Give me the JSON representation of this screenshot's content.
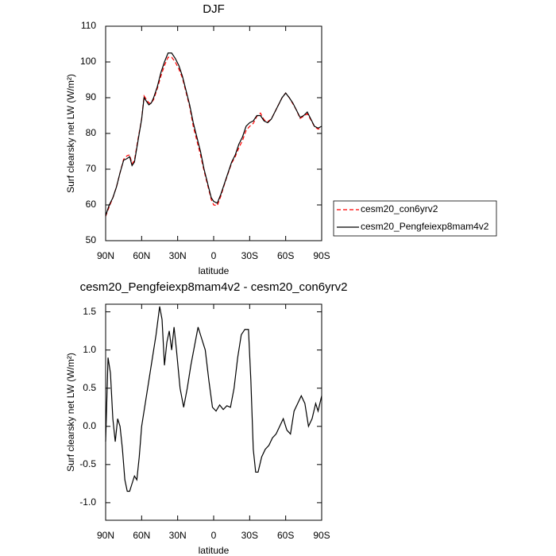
{
  "chart_data": [
    {
      "type": "line",
      "title": "DJF",
      "x_label": "latitude",
      "y_label": "Surf clearsky net LW (W/m²)",
      "xlim": [
        90,
        -90
      ],
      "xticks": [
        {
          "value": 90,
          "label": "90N"
        },
        {
          "value": 60,
          "label": "60N"
        },
        {
          "value": 30,
          "label": "30N"
        },
        0,
        {
          "value": -30,
          "label": "30S"
        },
        {
          "value": -60,
          "label": "60S"
        },
        {
          "value": -90,
          "label": "90S"
        }
      ],
      "ylim": [
        50,
        110
      ],
      "yticks": [
        50,
        60,
        70,
        80,
        90,
        100,
        110
      ],
      "legend": "right",
      "x": [
        90,
        87,
        84,
        81,
        78,
        75,
        72,
        70,
        68,
        66,
        63,
        60,
        58,
        56,
        54,
        52,
        50,
        47,
        44,
        41,
        38,
        35,
        32,
        29,
        26,
        23,
        20,
        17,
        14,
        11,
        8,
        5,
        2,
        0,
        -3,
        -6,
        -9,
        -12,
        -15,
        -18,
        -21,
        -24,
        -27,
        -30,
        -33,
        -36,
        -39,
        -42,
        -45,
        -48,
        -51,
        -54,
        -57,
        -60,
        -63,
        -66,
        -69,
        -72,
        -75,
        -78,
        -81,
        -84,
        -87,
        -90
      ],
      "series": [
        {
          "name": "cesm20_con6yrv2",
          "color": "#ff0000",
          "dash": true,
          "values": [
            56.8,
            59.5,
            62,
            65,
            69,
            72.8,
            73.8,
            74,
            71.5,
            72.5,
            78.5,
            84,
            90.5,
            89.5,
            88.5,
            88.5,
            89.5,
            92.5,
            96,
            99,
            101.3,
            101.3,
            100,
            98,
            95.5,
            91.5,
            87.5,
            82,
            78,
            74,
            69.5,
            65.5,
            61.5,
            60,
            59.8,
            62.5,
            65.8,
            68.8,
            71.7,
            73.5,
            76,
            78,
            80.8,
            82,
            82.8,
            84.8,
            85.7,
            83.8,
            83.3,
            84,
            86,
            88,
            90,
            91.3,
            90,
            88.3,
            86.5,
            84.2,
            84.8,
            85.5,
            83.8,
            81.9,
            81.2,
            81.6
          ]
        },
        {
          "name": "cesm20_Pengfeiexp8mam4v2",
          "color": "#000000",
          "dash": false,
          "values": [
            57,
            60,
            62,
            65,
            69,
            72.5,
            73,
            73.5,
            71,
            72,
            78,
            84,
            90,
            89,
            88,
            88.5,
            90,
            93,
            97,
            100,
            102.5,
            102.5,
            101,
            99,
            96,
            92,
            88,
            83,
            79,
            75,
            70,
            66,
            62,
            61,
            60.5,
            63,
            66,
            69,
            72,
            74,
            77,
            79,
            82,
            83,
            83.5,
            85,
            85,
            83.5,
            83,
            84,
            86,
            88,
            90,
            91.3,
            90,
            88.5,
            86.5,
            84.5,
            85,
            86,
            84,
            82,
            81.5,
            82
          ]
        }
      ]
    },
    {
      "type": "line",
      "title": "cesm20_Pengfeiexp8mam4v2 - cesm20_con6yrv2",
      "x_label": "latitude",
      "y_label": "Surf clearsky net LW (W/m²)",
      "xlim": [
        90,
        -90
      ],
      "xticks": [
        {
          "value": 90,
          "label": "90N"
        },
        {
          "value": 60,
          "label": "60N"
        },
        {
          "value": 30,
          "label": "30N"
        },
        0,
        {
          "value": -30,
          "label": "30S"
        },
        {
          "value": -60,
          "label": "60S"
        },
        {
          "value": -90,
          "label": "90S"
        }
      ],
      "ylim": [
        -1.23,
        1.6
      ],
      "yticks": [
        {
          "value": -1,
          "label": "-1.0"
        },
        -0.5,
        {
          "value": 0,
          "label": "0.0"
        },
        0.5,
        {
          "value": 1,
          "label": "1.0"
        },
        1.5
      ],
      "x": [
        90,
        88,
        86,
        84,
        82,
        80,
        78,
        76,
        74,
        72,
        70,
        68,
        66,
        64,
        62,
        60,
        57,
        54,
        51,
        48,
        45,
        43,
        41,
        39,
        37,
        35,
        33,
        31,
        28,
        25,
        22,
        19,
        16,
        13,
        10,
        7,
        4,
        1,
        -2,
        -5,
        -8,
        -11,
        -14,
        -17,
        -20,
        -23,
        -26,
        -29,
        -31,
        -33,
        -35,
        -37,
        -40,
        -43,
        -46,
        -49,
        -52,
        -55,
        -58,
        -61,
        -64,
        -67,
        -70,
        -73,
        -76,
        -79,
        -82,
        -85,
        -87,
        -90
      ],
      "series": [
        {
          "color": "#000000",
          "values": [
            -0.2,
            0.9,
            0.7,
            0.1,
            -0.2,
            0.1,
            0.0,
            -0.3,
            -0.7,
            -0.85,
            -0.85,
            -0.75,
            -0.65,
            -0.7,
            -0.4,
            0.0,
            0.3,
            0.6,
            0.9,
            1.2,
            1.57,
            1.4,
            0.8,
            1.1,
            1.25,
            1.0,
            1.3,
            1.0,
            0.5,
            0.25,
            0.5,
            0.8,
            1.05,
            1.3,
            1.15,
            1.0,
            0.6,
            0.25,
            0.2,
            0.28,
            0.22,
            0.27,
            0.25,
            0.5,
            0.9,
            1.2,
            1.27,
            1.27,
            0.6,
            -0.3,
            -0.6,
            -0.6,
            -0.4,
            -0.3,
            -0.25,
            -0.15,
            -0.1,
            0.0,
            0.1,
            -0.05,
            -0.1,
            0.2,
            0.3,
            0.4,
            0.3,
            0.0,
            0.1,
            0.3,
            0.2,
            0.4
          ]
        }
      ]
    }
  ]
}
